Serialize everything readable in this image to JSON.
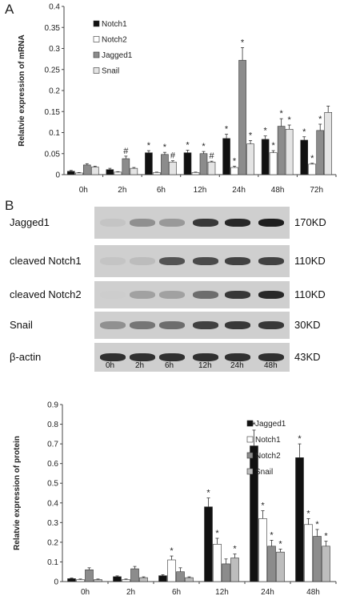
{
  "panels": {
    "a": "A",
    "b": "B"
  },
  "chart_data": [
    {
      "type": "bar",
      "ylabel": "Relatvie expression of mRNA",
      "ylim": [
        0,
        0.4
      ],
      "yticks": [
        "0",
        "0.05",
        "0.1",
        "0.15",
        "0.2",
        "0.25",
        "0.3",
        "0.35",
        "0.4"
      ],
      "categories": [
        "0h",
        "2h",
        "6h",
        "12h",
        "24h",
        "48h",
        "72h"
      ],
      "legend_position": "top-left",
      "series": [
        {
          "name": "Notch1",
          "color": "#111111",
          "values": [
            0.008,
            0.012,
            0.052,
            0.052,
            0.086,
            0.084,
            0.082
          ],
          "errors": [
            0.002,
            0.003,
            0.005,
            0.006,
            0.01,
            0.008,
            0.008
          ],
          "marks": [
            "",
            "",
            "*",
            "*",
            "*",
            "*",
            "*"
          ]
        },
        {
          "name": "Notch2",
          "color": "#ffffff",
          "values": [
            0.004,
            0.006,
            0.005,
            0.005,
            0.017,
            0.052,
            0.025
          ],
          "errors": [
            0.001,
            0.001,
            0.001,
            0.001,
            0.003,
            0.005,
            0.002
          ],
          "marks": [
            "",
            "",
            "",
            "",
            "*",
            "*",
            "*"
          ]
        },
        {
          "name": "Jagged1",
          "color": "#8c8c8c",
          "values": [
            0.023,
            0.038,
            0.048,
            0.05,
            0.272,
            0.115,
            0.105
          ],
          "errors": [
            0.003,
            0.006,
            0.005,
            0.005,
            0.03,
            0.018,
            0.015
          ],
          "marks": [
            "",
            "#",
            "*",
            "*",
            "*",
            "*",
            "*"
          ]
        },
        {
          "name": "Snail",
          "color": "#e4e4e4",
          "values": [
            0.018,
            0.015,
            0.03,
            0.03,
            0.073,
            0.108,
            0.148
          ],
          "errors": [
            0.002,
            0.002,
            0.003,
            0.002,
            0.008,
            0.01,
            0.015
          ],
          "marks": [
            "",
            "",
            "#",
            "#",
            "*",
            "*",
            ""
          ]
        }
      ]
    },
    {
      "type": "bar",
      "ylabel": "Relatvie expression of protein",
      "ylim": [
        0,
        0.9
      ],
      "yticks": [
        "0",
        "0.1",
        "0.2",
        "0.3",
        "0.4",
        "0.5",
        "0.6",
        "0.7",
        "0.8",
        "0.9"
      ],
      "categories": [
        "0h",
        "2h",
        "6h",
        "12h",
        "24h",
        "48h"
      ],
      "legend_position": "top-right",
      "series": [
        {
          "name": "Jagged1",
          "color": "#111111",
          "values": [
            0.015,
            0.025,
            0.03,
            0.38,
            0.69,
            0.63
          ],
          "errors": [
            0.003,
            0.004,
            0.005,
            0.045,
            0.08,
            0.07
          ],
          "marks": [
            "",
            "",
            "",
            "*",
            "*",
            "*"
          ]
        },
        {
          "name": "Notch1",
          "color": "#ffffff",
          "values": [
            0.01,
            0.01,
            0.11,
            0.19,
            0.32,
            0.29
          ],
          "errors": [
            0.003,
            0.003,
            0.02,
            0.03,
            0.04,
            0.03
          ],
          "marks": [
            "",
            "",
            "*",
            "*",
            "*",
            "*"
          ]
        },
        {
          "name": "Notch2",
          "color": "#8c8c8c",
          "values": [
            0.06,
            0.065,
            0.05,
            0.09,
            0.18,
            0.23
          ],
          "errors": [
            0.01,
            0.012,
            0.02,
            0.025,
            0.03,
            0.035
          ],
          "marks": [
            "",
            "",
            "",
            "",
            "*",
            "*"
          ]
        },
        {
          "name": "Snail",
          "color": "#bdbdbd",
          "values": [
            0.01,
            0.02,
            0.02,
            0.12,
            0.15,
            0.18
          ],
          "errors": [
            0.003,
            0.004,
            0.004,
            0.02,
            0.015,
            0.025
          ],
          "marks": [
            "",
            "",
            "",
            "*",
            "*",
            "*"
          ]
        }
      ]
    }
  ],
  "blot": {
    "lanes": [
      "0h",
      "2h",
      "6h",
      "12h",
      "24h",
      "48h"
    ],
    "rows": [
      {
        "label": "Jagged1",
        "kd": "170KD",
        "intensity": [
          0.05,
          0.35,
          0.3,
          0.85,
          0.95,
          1.0
        ]
      },
      {
        "label": "cleaved Notch1",
        "kd": "110KD",
        "intensity": [
          0.05,
          0.1,
          0.7,
          0.75,
          0.8,
          0.8
        ]
      },
      {
        "label": "cleaved Notch2",
        "kd": "110KD",
        "intensity": [
          0.0,
          0.25,
          0.25,
          0.55,
          0.85,
          0.95
        ]
      },
      {
        "label": "Snail",
        "kd": "30KD",
        "intensity": [
          0.35,
          0.5,
          0.55,
          0.8,
          0.85,
          0.85
        ]
      },
      {
        "label": "β-actin",
        "kd": "43KD",
        "intensity": [
          0.9,
          0.9,
          0.9,
          0.9,
          0.9,
          0.9
        ]
      }
    ]
  }
}
